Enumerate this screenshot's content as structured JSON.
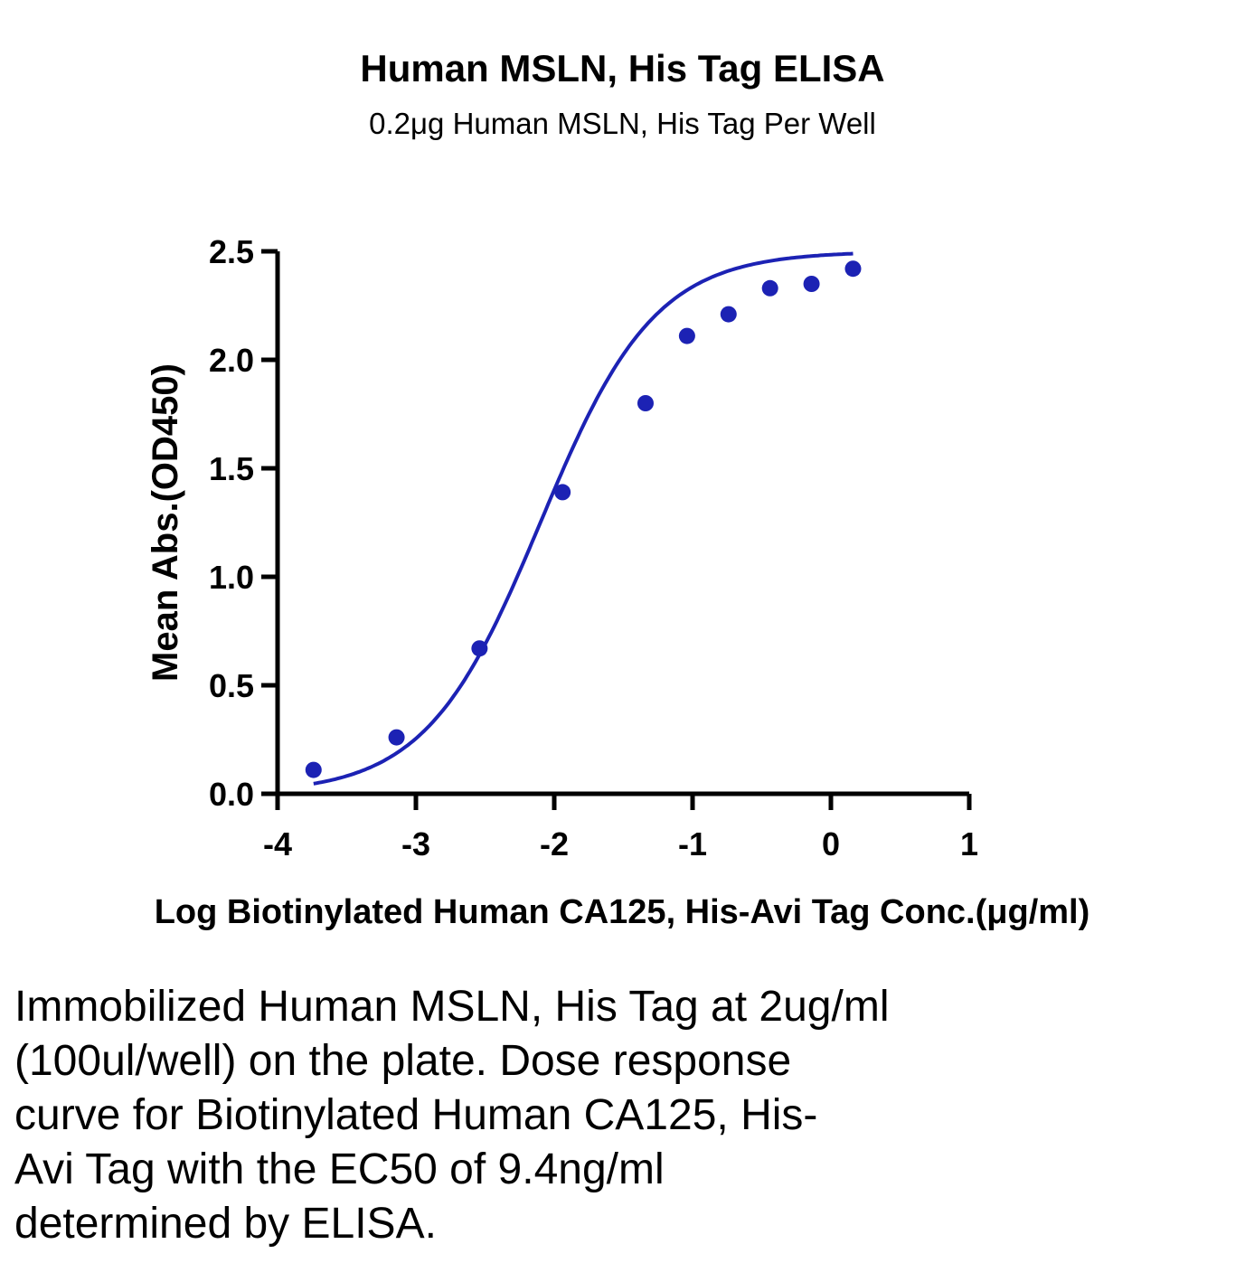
{
  "chart_data": {
    "type": "scatter",
    "title": "Human MSLN, His Tag ELISA",
    "subtitle": "0.2μg Human MSLN, His Tag Per Well",
    "xlabel": "Log Biotinylated Human CA125, His-Avi Tag Conc.(μg/ml)",
    "ylabel": "Mean Abs.(OD450)",
    "xlim": [
      -4,
      1
    ],
    "ylim": [
      0,
      2.5
    ],
    "x_ticks": [
      "-4",
      "-3",
      "-2",
      "-1",
      "0",
      "1"
    ],
    "y_ticks": [
      "0.0",
      "0.5",
      "1.0",
      "1.5",
      "2.0",
      "2.5"
    ],
    "grid": false,
    "series": [
      {
        "color": "#1c22b4",
        "x": [
          -3.74,
          -3.14,
          -2.54,
          -1.94,
          -1.34,
          -1.04,
          -0.74,
          -0.44,
          -0.14,
          0.16
        ],
        "y": [
          0.11,
          0.26,
          0.67,
          1.39,
          1.8,
          2.11,
          2.21,
          2.33,
          2.35,
          2.42
        ],
        "fit": "4PL sigmoidal"
      }
    ]
  },
  "caption_lines": [
    "Immobilized Human MSLN, His Tag at 2ug/ml",
    "(100ul/well) on the plate. Dose response",
    "curve for Biotinylated Human CA125, His-",
    "Avi Tag with the EC50 of 9.4ng/ml",
    "determined by ELISA."
  ]
}
